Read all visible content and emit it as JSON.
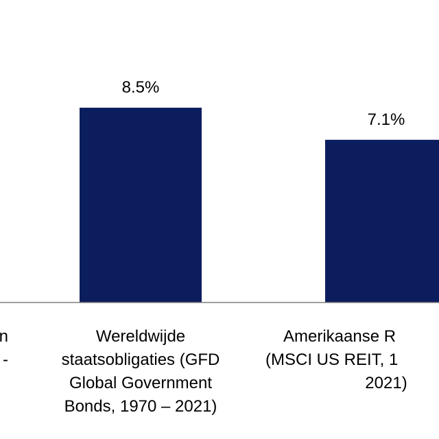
{
  "chart_data": {
    "type": "bar",
    "categories": [
      [
        "n",
        "-"
      ],
      [
        "Wereldwijde",
        "staatsobligaties (GFD",
        "Global Government",
        "Bonds, 1970 – 2021)"
      ],
      [
        "Amerikaanse R",
        "(MSCI US REIT, 1",
        "2021)"
      ]
    ],
    "values": [
      null,
      8.5,
      7.1
    ],
    "value_labels": [
      null,
      "8.5%",
      "7.1%"
    ],
    "color": "#0c1d5e",
    "ylim": [
      0,
      13.2
    ]
  }
}
